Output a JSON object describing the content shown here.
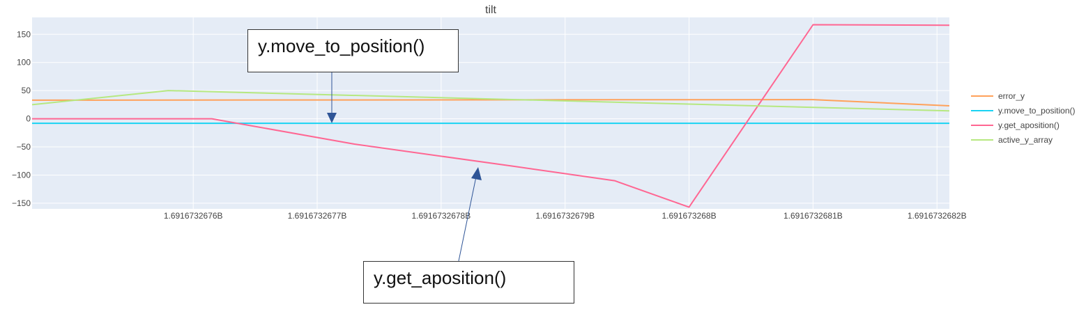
{
  "chart_data": {
    "type": "line",
    "title": "tilt",
    "xlabel": "",
    "ylabel": "",
    "x_ticks": [
      "1.6916732676B",
      "1.6916732677B",
      "1.6916732678B",
      "1.6916732679B",
      "1.691673268B",
      "1.6916732681B",
      "1.6916732682B"
    ],
    "x_tick_values": [
      1.6916732676,
      1.6916732677,
      1.6916732678,
      1.6916732679,
      1.691673268,
      1.6916732681,
      1.6916732682
    ],
    "xlim": [
      1.69167326747,
      1.69167326821
    ],
    "y_ticks": [
      150,
      100,
      50,
      0,
      -50,
      -100,
      -150
    ],
    "ylim": [
      -160,
      180
    ],
    "grid": true,
    "plot_bg": "#e5ecf6",
    "legend_position": "right",
    "series": [
      {
        "name": "error_y",
        "color": "#ffa15a",
        "x": [
          1.69167326747,
          1.6916732681,
          1.69167326821
        ],
        "y": [
          33,
          34,
          23
        ]
      },
      {
        "name": "y.move_to_position()",
        "color": "#19d3f3",
        "x": [
          1.69167326747,
          1.69167326821
        ],
        "y": [
          -8,
          -8
        ]
      },
      {
        "name": "y.get_aposition()",
        "color": "#ff6692",
        "x": [
          1.69167326747,
          1.691673267615,
          1.69167326773,
          1.69167326786,
          1.69167326794,
          1.691673268,
          1.6916732681,
          1.69167326821
        ],
        "y": [
          0,
          0,
          -45,
          -85,
          -110,
          -157,
          167,
          166
        ]
      },
      {
        "name": "active_y_array",
        "color": "#b6e880",
        "x": [
          1.69167326747,
          1.69167326758,
          1.69167326821
        ],
        "y": [
          25,
          50,
          14
        ]
      }
    ],
    "annotations": [
      {
        "text": "y.move_to_position()"
      },
      {
        "text": "y.get_aposition()"
      }
    ]
  }
}
